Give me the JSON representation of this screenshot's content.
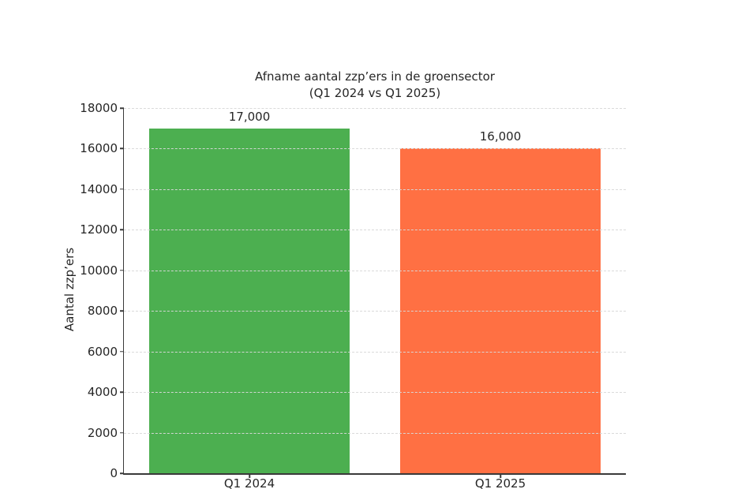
{
  "chart_data": {
    "type": "bar",
    "title": "Afname aantal zzp’ers in de groensector",
    "subtitle": "(Q1 2024 vs Q1 2025)",
    "categories": [
      "Q1 2024",
      "Q1 2025"
    ],
    "values": [
      17000,
      16000
    ],
    "value_labels": [
      "17,000",
      "16,000"
    ],
    "bar_colors": [
      "#4caf50",
      "#ff7043"
    ],
    "bar_width_fraction": 0.8,
    "xlabel": "",
    "ylabel": "Aantal zzp’ers",
    "ylim": [
      0,
      18000
    ],
    "yticks": [
      0,
      2000,
      4000,
      6000,
      8000,
      10000,
      12000,
      14000,
      16000,
      18000
    ],
    "ytick_labels": [
      "0",
      "2000",
      "4000",
      "6000",
      "8000",
      "10000",
      "12000",
      "14000",
      "16000",
      "18000"
    ],
    "grid": {
      "axis": "y",
      "style": "dashed",
      "color": "#d9d9d9",
      "on_top_of_bars": true
    },
    "legend": null
  },
  "style": {
    "background": "#ffffff",
    "text_color": "#262626",
    "axis_color": "#3a3a3a"
  }
}
